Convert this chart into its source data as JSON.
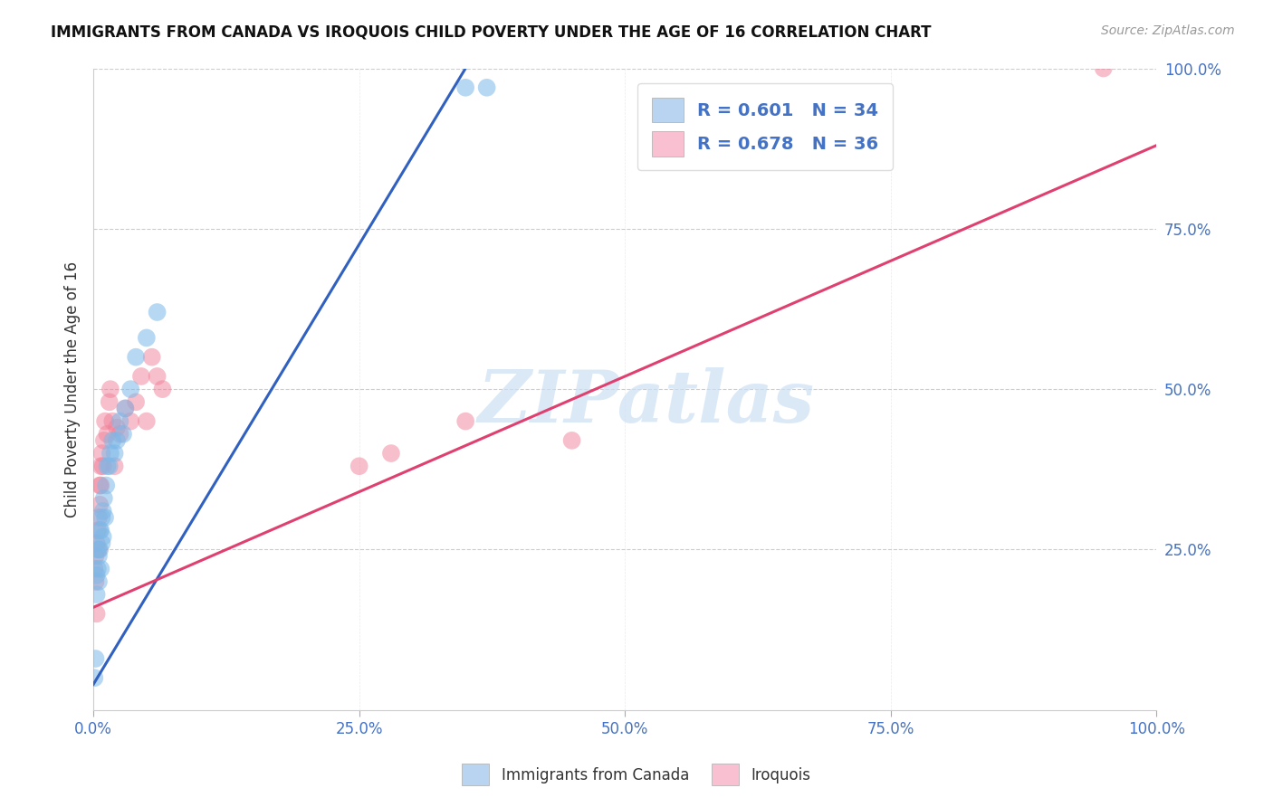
{
  "title": "IMMIGRANTS FROM CANADA VS IROQUOIS CHILD POVERTY UNDER THE AGE OF 16 CORRELATION CHART",
  "source": "Source: ZipAtlas.com",
  "ylabel": "Child Poverty Under the Age of 16",
  "xmin": 0.0,
  "xmax": 1.0,
  "ymin": 0.0,
  "ymax": 1.0,
  "xtick_labels": [
    "0.0%",
    "25.0%",
    "50.0%",
    "75.0%",
    "100.0%"
  ],
  "xtick_positions": [
    0.0,
    0.25,
    0.5,
    0.75,
    1.0
  ],
  "ytick_labels_right": [
    "100.0%",
    "75.0%",
    "50.0%",
    "25.0%"
  ],
  "ytick_positions_right": [
    1.0,
    0.75,
    0.5,
    0.25
  ],
  "blue_color": "#7db8e8",
  "pink_color": "#f08098",
  "blue_line_color": "#3060c0",
  "pink_line_color": "#e04070",
  "legend_blue_patch": "#b8d4f0",
  "legend_pink_patch": "#f8c0d0",
  "watermark": "ZIPatlas",
  "background_color": "#ffffff",
  "grid_color": "#cccccc",
  "blue_scatter_x": [
    0.001,
    0.002,
    0.003,
    0.003,
    0.004,
    0.004,
    0.005,
    0.005,
    0.006,
    0.006,
    0.007,
    0.007,
    0.008,
    0.008,
    0.009,
    0.009,
    0.01,
    0.011,
    0.012,
    0.013,
    0.015,
    0.016,
    0.018,
    0.02,
    0.022,
    0.025,
    0.028,
    0.03,
    0.035,
    0.04,
    0.05,
    0.06,
    0.35,
    0.37
  ],
  "blue_scatter_y": [
    0.05,
    0.08,
    0.18,
    0.21,
    0.22,
    0.25,
    0.2,
    0.24,
    0.25,
    0.28,
    0.22,
    0.28,
    0.26,
    0.3,
    0.27,
    0.31,
    0.33,
    0.3,
    0.35,
    0.38,
    0.38,
    0.4,
    0.42,
    0.4,
    0.42,
    0.45,
    0.43,
    0.47,
    0.5,
    0.55,
    0.58,
    0.62,
    0.97,
    0.97
  ],
  "pink_scatter_x": [
    0.001,
    0.002,
    0.002,
    0.003,
    0.003,
    0.004,
    0.005,
    0.005,
    0.006,
    0.006,
    0.007,
    0.007,
    0.008,
    0.009,
    0.01,
    0.011,
    0.013,
    0.015,
    0.016,
    0.018,
    0.02,
    0.022,
    0.025,
    0.03,
    0.035,
    0.04,
    0.045,
    0.05,
    0.055,
    0.06,
    0.065,
    0.25,
    0.28,
    0.35,
    0.45,
    0.95
  ],
  "pink_scatter_y": [
    0.22,
    0.2,
    0.24,
    0.15,
    0.26,
    0.28,
    0.25,
    0.3,
    0.32,
    0.35,
    0.35,
    0.38,
    0.4,
    0.38,
    0.42,
    0.45,
    0.43,
    0.48,
    0.5,
    0.45,
    0.38,
    0.44,
    0.43,
    0.47,
    0.45,
    0.48,
    0.52,
    0.45,
    0.55,
    0.52,
    0.5,
    0.38,
    0.4,
    0.45,
    0.42,
    1.0
  ],
  "blue_line_x": [
    0.0,
    0.35
  ],
  "blue_line_y": [
    0.04,
    1.0
  ],
  "pink_line_x": [
    0.0,
    1.0
  ],
  "pink_line_y": [
    0.16,
    0.88
  ]
}
